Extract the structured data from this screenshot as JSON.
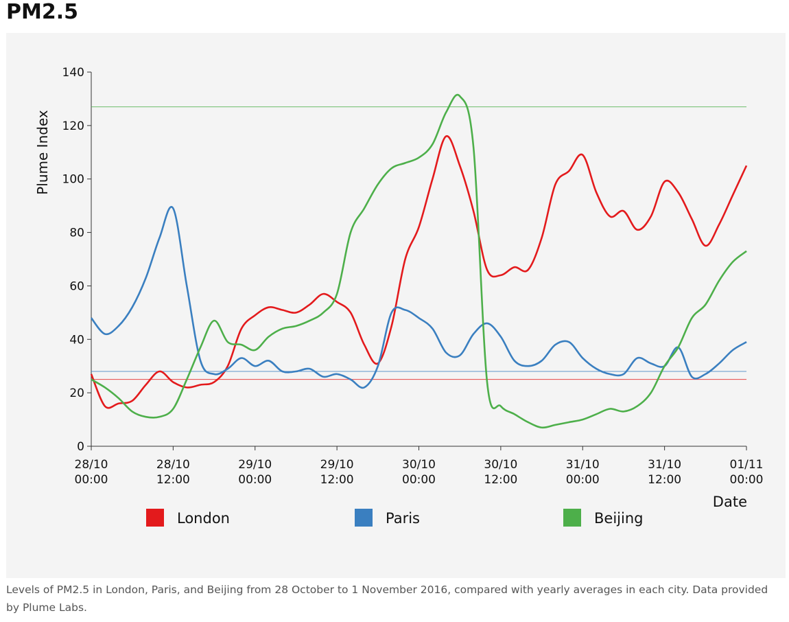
{
  "chart_data": {
    "type": "line",
    "title": "PM2.5",
    "ylabel": "Plume Index",
    "xlabel": "Date",
    "caption": "Levels of PM2.5 in London, Paris, and Beijing from 28 October to 1 November 2016, compared with yearly averages in each city. Data provided by Plume Labs.",
    "x": [
      "28/10 00:00",
      "28/10 02:00",
      "28/10 04:00",
      "28/10 06:00",
      "28/10 08:00",
      "28/10 10:00",
      "28/10 12:00",
      "28/10 14:00",
      "28/10 16:00",
      "28/10 18:00",
      "28/10 20:00",
      "28/10 22:00",
      "29/10 00:00",
      "29/10 02:00",
      "29/10 04:00",
      "29/10 06:00",
      "29/10 08:00",
      "29/10 10:00",
      "29/10 12:00",
      "29/10 14:00",
      "29/10 16:00",
      "29/10 18:00",
      "29/10 20:00",
      "29/10 22:00",
      "30/10 00:00",
      "30/10 02:00",
      "30/10 04:00",
      "30/10 06:00",
      "30/10 08:00",
      "30/10 10:00",
      "30/10 12:00",
      "30/10 14:00",
      "30/10 16:00",
      "30/10 18:00",
      "30/10 20:00",
      "30/10 22:00",
      "31/10 00:00",
      "31/10 02:00",
      "31/10 04:00",
      "31/10 06:00",
      "31/10 08:00",
      "31/10 10:00",
      "31/10 12:00",
      "31/10 14:00",
      "31/10 16:00",
      "31/10 18:00",
      "31/10 20:00",
      "31/10 22:00",
      "01/11 00:00"
    ],
    "series": [
      {
        "name": "London",
        "color": "#e31a1c",
        "average": 25,
        "values": [
          27,
          15,
          16,
          17,
          23,
          28,
          24,
          22,
          23,
          24,
          30,
          44,
          49,
          52,
          51,
          50,
          53,
          57,
          54,
          50,
          38,
          31,
          45,
          70,
          82,
          100,
          116,
          105,
          88,
          66,
          64,
          67,
          66,
          78,
          98,
          103,
          109,
          95,
          86,
          88,
          81,
          86,
          99,
          95,
          85,
          75,
          83,
          94,
          105
        ]
      },
      {
        "name": "Paris",
        "color": "#3a7fc0",
        "average": 28,
        "values": [
          48,
          42,
          45,
          52,
          63,
          78,
          89,
          60,
          32,
          27,
          29,
          33,
          30,
          32,
          28,
          28,
          29,
          26,
          27,
          25,
          22,
          30,
          50,
          51,
          48,
          44,
          35,
          34,
          42,
          46,
          41,
          32,
          30,
          32,
          38,
          39,
          33,
          29,
          27,
          27,
          33,
          31,
          30,
          37,
          26,
          27,
          31,
          36,
          39
        ]
      },
      {
        "name": "Beijing",
        "color": "#4daf4a",
        "average": 127,
        "values": [
          25,
          22,
          18,
          13,
          11,
          11,
          14,
          25,
          37,
          47,
          39,
          38,
          36,
          41,
          44,
          45,
          47,
          50,
          57,
          80,
          89,
          98,
          104,
          106,
          108,
          113,
          125,
          131,
          112,
          24,
          15,
          12,
          9,
          7,
          8,
          9,
          10,
          12,
          14,
          13,
          15,
          20,
          30,
          37,
          48,
          53,
          62,
          69,
          73
        ]
      }
    ],
    "xlim": [
      "28/10 00:00",
      "01/11 00:00"
    ],
    "xticks": [
      "28/10 00:00",
      "28/10 12:00",
      "29/10 00:00",
      "29/10 12:00",
      "30/10 00:00",
      "30/10 12:00",
      "31/10 00:00",
      "31/10 12:00",
      "01/11 00:00"
    ],
    "ylim": [
      0,
      140
    ],
    "yticks": [
      0,
      20,
      40,
      60,
      80,
      100,
      120,
      140
    ],
    "legend": "bottom"
  }
}
